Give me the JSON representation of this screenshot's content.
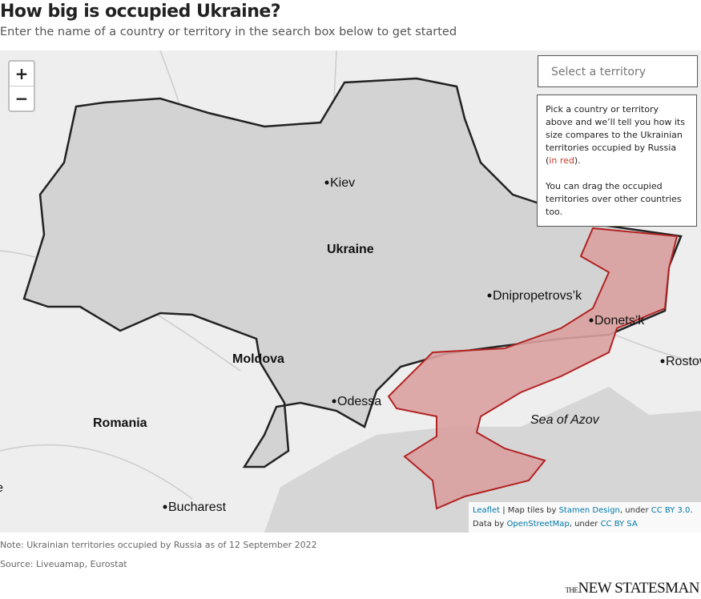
{
  "header": {
    "title": "How big is occupied Ukraine?",
    "subtitle": "Enter the name of a country or territory in the search box below to get started"
  },
  "controls": {
    "zoom_in": "+",
    "zoom_out": "−",
    "select_placeholder": "Select a territory"
  },
  "info": {
    "p1_before": "Pick a country or territory above and we’ll tell you how its size compares to the Ukrainian territories occupied by Russia (",
    "p1_red": "in red",
    "p1_after": ").",
    "p2": "You can drag the occupied territories over other countries too."
  },
  "map": {
    "labels": {
      "kiev": "Kiev",
      "ukraine": "Ukraine",
      "dnipro": "Dnipropetrovs’k",
      "donetsk": "Donets’k",
      "moldova": "Moldova",
      "odessa": "Odessa",
      "romania": "Romania",
      "azov": "Sea of Azov",
      "bucharest": "Bucharest",
      "rostov": "Rostov",
      "belgrade": "Belgrade"
    }
  },
  "attribution": {
    "leaflet": "Leaflet",
    "t1": "| Map tiles by",
    "stamen": "Stamen Design",
    "t2": ", under",
    "cc3": "CC BY 3.0",
    "t3": ". Data by",
    "osm": "OpenStreetMap",
    "t4": ", under",
    "ccsa": "CC BY SA"
  },
  "footer": {
    "note": "Note: Ukrainian territories occupied by Russia as of 12 September 2022",
    "source": "Source: Liveuamap, Eurostat",
    "logo_small": "THE",
    "logo": "NEW STATESMAN"
  }
}
